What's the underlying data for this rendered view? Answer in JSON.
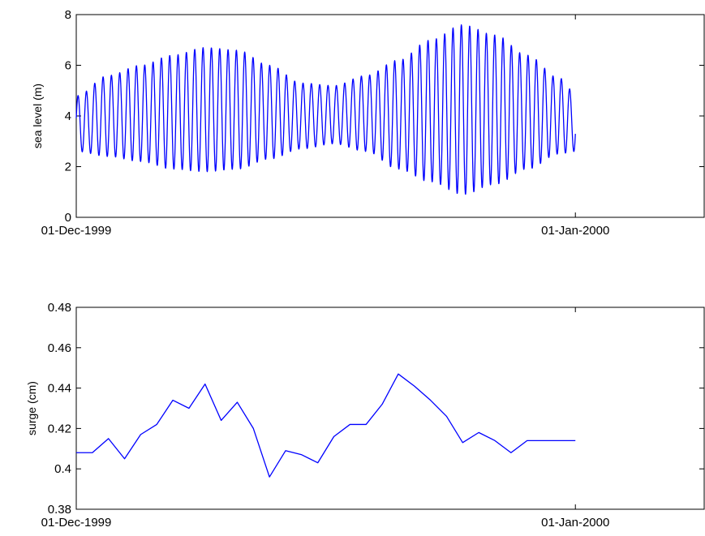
{
  "chart_data": [
    {
      "type": "line",
      "ylabel": "sea level (m)",
      "xlabel": "",
      "xlim": [
        "01-Dec-1999",
        "09-Jan-2000"
      ],
      "ylim": [
        0,
        8
      ],
      "yticks": [
        0,
        2,
        4,
        6,
        8
      ],
      "xticks": [
        "01-Dec-1999",
        "01-Jan-2000"
      ],
      "color": "#0000ff",
      "series": [
        {
          "description": "semidiurnal tidal oscillation, ~2 cycles per day, 01-Dec-1999 to 01-Jan-2000",
          "x": [
            "1999-12-01",
            "1999-12-03",
            "1999-12-05",
            "1999-12-07",
            "1999-12-09",
            "1999-12-11",
            "1999-12-13",
            "1999-12-15",
            "1999-12-17",
            "1999-12-19",
            "1999-12-21",
            "1999-12-23",
            "1999-12-25",
            "1999-12-27",
            "1999-12-29",
            "1999-12-31",
            "2000-01-01"
          ],
          "high": [
            4.8,
            5.6,
            6.0,
            6.4,
            6.7,
            6.6,
            6.0,
            5.3,
            5.2,
            5.6,
            6.2,
            7.0,
            7.6,
            7.2,
            6.4,
            5.5,
            4.9
          ],
          "low": [
            2.6,
            2.4,
            2.2,
            1.9,
            1.8,
            1.9,
            2.3,
            2.7,
            2.9,
            2.6,
            1.9,
            1.4,
            0.9,
            1.3,
            1.9,
            2.5,
            2.6
          ]
        }
      ]
    },
    {
      "type": "line",
      "ylabel": "surge (cm)",
      "xlabel": "",
      "xlim": [
        "01-Dec-1999",
        "09-Jan-2000"
      ],
      "ylim": [
        0.38,
        0.48
      ],
      "yticks": [
        "0.38",
        "0.4",
        "0.42",
        "0.44",
        "0.46",
        "0.48"
      ],
      "xticks": [
        "01-Dec-1999",
        "01-Jan-2000"
      ],
      "color": "#0000ff",
      "series": [
        {
          "x": [
            "1999-12-01",
            "1999-12-02",
            "1999-12-03",
            "1999-12-04",
            "1999-12-05",
            "1999-12-06",
            "1999-12-07",
            "1999-12-08",
            "1999-12-09",
            "1999-12-10",
            "1999-12-11",
            "1999-12-12",
            "1999-12-13",
            "1999-12-14",
            "1999-12-15",
            "1999-12-16",
            "1999-12-17",
            "1999-12-18",
            "1999-12-19",
            "1999-12-20",
            "1999-12-21",
            "1999-12-22",
            "1999-12-23",
            "1999-12-24",
            "1999-12-25",
            "1999-12-26",
            "1999-12-27",
            "1999-12-28",
            "1999-12-29",
            "1999-12-30",
            "1999-12-31",
            "2000-01-01"
          ],
          "y": [
            0.408,
            0.408,
            0.415,
            0.405,
            0.417,
            0.422,
            0.434,
            0.43,
            0.442,
            0.424,
            0.433,
            0.42,
            0.396,
            0.409,
            0.407,
            0.403,
            0.416,
            0.422,
            0.422,
            0.432,
            0.447,
            0.441,
            0.434,
            0.426,
            0.413,
            0.418,
            0.414,
            0.408,
            0.414,
            0.414,
            0.414,
            0.414
          ]
        }
      ]
    }
  ]
}
